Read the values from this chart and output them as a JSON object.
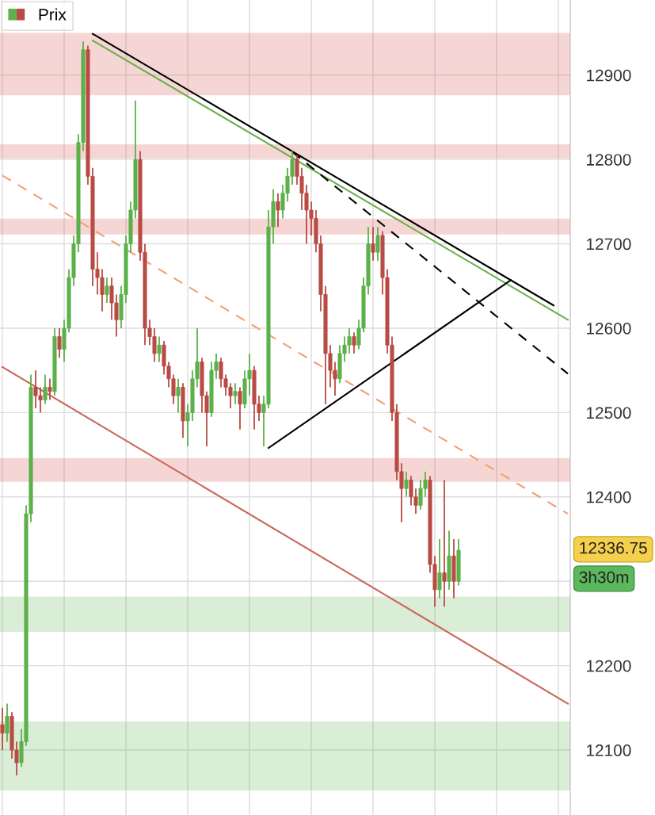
{
  "chart_data": {
    "type": "candlestick",
    "categories": [
      null,
      null,
      null,
      null,
      null,
      null,
      null,
      null,
      null,
      null,
      null,
      null,
      null,
      null,
      null,
      null,
      null,
      null,
      null,
      null,
      null,
      null,
      null,
      null,
      null,
      null,
      null,
      null,
      null,
      null,
      null,
      null,
      null,
      null,
      null,
      null,
      null,
      null,
      null,
      null,
      null,
      null,
      null,
      null,
      null,
      null,
      null,
      null,
      null,
      null,
      null,
      null,
      null,
      null,
      null,
      null,
      null,
      null,
      null,
      null,
      null,
      null,
      null,
      null,
      null,
      null,
      null,
      null,
      null,
      null,
      null,
      null,
      null,
      null,
      null,
      null,
      null,
      null,
      null,
      null,
      null,
      null,
      null,
      null,
      null,
      null,
      null,
      null,
      null,
      null,
      null,
      null,
      null,
      null,
      null,
      null,
      null,
      null,
      null,
      null,
      null,
      null,
      null,
      null,
      null,
      null,
      null,
      null,
      null,
      null,
      null,
      null,
      null,
      null,
      null,
      null,
      null,
      null,
      null,
      null
    ],
    "ylim": [
      12023,
      12989
    ],
    "yticks": [
      12100,
      12200,
      {
        "value": 12300,
        "label": null
      },
      12400,
      12500,
      12600,
      12700,
      12800,
      12900
    ],
    "grid": true,
    "legend": "top left",
    "series": [
      {
        "name": "Prix",
        "ohlc": [
          [
            12130,
            12150,
            12100,
            12120
          ],
          [
            12120,
            12155,
            12110,
            12140
          ],
          [
            12140,
            12145,
            12090,
            12100
          ],
          [
            12100,
            12110,
            12070,
            12085
          ],
          [
            12085,
            12125,
            12080,
            12110
          ],
          [
            12110,
            12390,
            12105,
            12380
          ],
          [
            12380,
            12545,
            12370,
            12530
          ],
          [
            12530,
            12550,
            12505,
            12520
          ],
          [
            12520,
            12530,
            12500,
            12515
          ],
          [
            12515,
            12545,
            12510,
            12530
          ],
          [
            12530,
            12540,
            12515,
            12525
          ],
          [
            12525,
            12600,
            12520,
            12590
          ],
          [
            12590,
            12600,
            12565,
            12575
          ],
          [
            12575,
            12610,
            12560,
            12600
          ],
          [
            12600,
            12670,
            12595,
            12660
          ],
          [
            12660,
            12710,
            12650,
            12700
          ],
          [
            12700,
            12830,
            12690,
            12820
          ],
          [
            12820,
            12940,
            12810,
            12930
          ],
          [
            12930,
            12935,
            12770,
            12780
          ],
          [
            12780,
            12790,
            12650,
            12670
          ],
          [
            12670,
            12690,
            12640,
            12660
          ],
          [
            12660,
            12670,
            12620,
            12640
          ],
          [
            12640,
            12660,
            12630,
            12650
          ],
          [
            12650,
            12660,
            12610,
            12630
          ],
          [
            12630,
            12640,
            12590,
            12610
          ],
          [
            12610,
            12650,
            12600,
            12640
          ],
          [
            12640,
            12710,
            12630,
            12700
          ],
          [
            12700,
            12750,
            12690,
            12740
          ],
          [
            12740,
            12870,
            12730,
            12800
          ],
          [
            12800,
            12810,
            12680,
            12690
          ],
          [
            12690,
            12700,
            12580,
            12600
          ],
          [
            12600,
            12610,
            12580,
            12590
          ],
          [
            12590,
            12600,
            12560,
            12570
          ],
          [
            12570,
            12590,
            12560,
            12580
          ],
          [
            12580,
            12585,
            12545,
            12555
          ],
          [
            12555,
            12560,
            12530,
            12540
          ],
          [
            12540,
            12545,
            12510,
            12520
          ],
          [
            12520,
            12540,
            12500,
            12530
          ],
          [
            12530,
            12535,
            12470,
            12490
          ],
          [
            12490,
            12510,
            12460,
            12500
          ],
          [
            12500,
            12550,
            12490,
            12540
          ],
          [
            12540,
            12600,
            12530,
            12560
          ],
          [
            12560,
            12565,
            12500,
            12520
          ],
          [
            12520,
            12525,
            12460,
            12500
          ],
          [
            12500,
            12560,
            12495,
            12550
          ],
          [
            12550,
            12570,
            12540,
            12560
          ],
          [
            12560,
            12565,
            12530,
            12540
          ],
          [
            12540,
            12545,
            12520,
            12530
          ],
          [
            12530,
            12535,
            12505,
            12520
          ],
          [
            12520,
            12535,
            12510,
            12525
          ],
          [
            12525,
            12530,
            12480,
            12510
          ],
          [
            12510,
            12550,
            12505,
            12540
          ],
          [
            12540,
            12570,
            12520,
            12550
          ],
          [
            12550,
            12555,
            12480,
            12510
          ],
          [
            12510,
            12520,
            12490,
            12500
          ],
          [
            12500,
            12520,
            12460,
            12510
          ],
          [
            12510,
            12740,
            12505,
            12720
          ],
          [
            12720,
            12765,
            12700,
            12750
          ],
          [
            12750,
            12760,
            12720,
            12740
          ],
          [
            12740,
            12770,
            12730,
            12760
          ],
          [
            12760,
            12790,
            12750,
            12780
          ],
          [
            12780,
            12810,
            12770,
            12800
          ],
          [
            12800,
            12805,
            12770,
            12780
          ],
          [
            12780,
            12790,
            12740,
            12760
          ],
          [
            12760,
            12770,
            12700,
            12740
          ],
          [
            12740,
            12750,
            12710,
            12730
          ],
          [
            12730,
            12740,
            12690,
            12700
          ],
          [
            12700,
            12710,
            12620,
            12640
          ],
          [
            12640,
            12650,
            12510,
            12570
          ],
          [
            12570,
            12580,
            12530,
            12550
          ],
          [
            12550,
            12560,
            12520,
            12540
          ],
          [
            12540,
            12580,
            12535,
            12570
          ],
          [
            12570,
            12590,
            12560,
            12580
          ],
          [
            12580,
            12600,
            12570,
            12590
          ],
          [
            12590,
            12595,
            12570,
            12580
          ],
          [
            12580,
            12610,
            12575,
            12600
          ],
          [
            12600,
            12660,
            12595,
            12650
          ],
          [
            12650,
            12720,
            12640,
            12700
          ],
          [
            12700,
            12720,
            12680,
            12690
          ],
          [
            12690,
            12720,
            12680,
            12710
          ],
          [
            12710,
            12715,
            12640,
            12660
          ],
          [
            12660,
            12670,
            12570,
            12580
          ],
          [
            12580,
            12590,
            12490,
            12500
          ],
          [
            12500,
            12510,
            12420,
            12430
          ],
          [
            12430,
            12440,
            12370,
            12410
          ],
          [
            12410,
            12430,
            12400,
            12420
          ],
          [
            12420,
            12425,
            12390,
            12400
          ],
          [
            12400,
            12410,
            12380,
            12390
          ],
          [
            12390,
            12420,
            12385,
            12410
          ],
          [
            12410,
            12430,
            12400,
            12420
          ],
          [
            12420,
            12425,
            12310,
            12320
          ],
          [
            12320,
            12330,
            12270,
            12290
          ],
          [
            12290,
            12350,
            12280,
            12310
          ],
          [
            12310,
            12420,
            12270,
            12300
          ],
          [
            12300,
            12360,
            12290,
            12330
          ],
          [
            12330,
            12350,
            12280,
            12300
          ],
          [
            12300,
            12350,
            12295,
            12336.75
          ],
          null,
          null,
          null,
          null,
          null,
          null,
          null,
          null,
          null,
          null,
          null,
          null,
          null,
          null,
          null,
          null,
          null,
          null,
          null,
          null,
          null,
          null,
          null
        ]
      },
      {
        "type": "line",
        "color": "#6ab04c",
        "line_style": "solid",
        "values": [
          null,
          null,
          null,
          null,
          null,
          null,
          null,
          null,
          null,
          null,
          null,
          null,
          null,
          null,
          null,
          null,
          null,
          null,
          null,
          12941,
          null,
          null,
          null,
          null,
          null,
          null,
          null,
          null,
          null,
          null,
          null,
          null,
          null,
          null,
          null,
          null,
          null,
          null,
          null,
          null,
          null,
          null,
          null,
          null,
          null,
          null,
          null,
          null,
          null,
          null,
          null,
          null,
          null,
          null,
          null,
          null,
          null,
          null,
          null,
          null,
          null,
          null,
          null,
          null,
          null,
          null,
          null,
          null,
          null,
          null,
          null,
          null,
          null,
          null,
          null,
          null,
          null,
          null,
          null,
          null,
          null,
          null,
          null,
          null,
          null,
          null,
          null,
          null,
          null,
          null,
          null,
          null,
          null,
          null,
          null,
          null,
          null,
          null,
          null,
          null,
          null,
          null,
          null,
          null,
          null,
          null,
          null,
          null,
          null,
          null,
          null,
          null,
          null,
          null,
          null,
          null,
          null,
          null,
          null,
          12610
        ]
      },
      {
        "type": "line",
        "color": "#c9655b",
        "line_style": "solid",
        "values": [
          12554,
          null,
          null,
          null,
          null,
          null,
          null,
          null,
          null,
          null,
          null,
          null,
          null,
          null,
          null,
          null,
          null,
          null,
          null,
          null,
          null,
          null,
          null,
          null,
          null,
          null,
          null,
          null,
          null,
          null,
          null,
          null,
          null,
          null,
          null,
          null,
          null,
          null,
          null,
          null,
          null,
          null,
          null,
          null,
          null,
          null,
          null,
          null,
          null,
          null,
          null,
          null,
          null,
          null,
          null,
          null,
          null,
          null,
          null,
          null,
          null,
          null,
          null,
          null,
          null,
          null,
          null,
          null,
          null,
          null,
          null,
          null,
          null,
          null,
          null,
          null,
          null,
          null,
          null,
          null,
          null,
          null,
          null,
          null,
          null,
          null,
          null,
          null,
          null,
          null,
          null,
          null,
          null,
          null,
          null,
          null,
          null,
          null,
          null,
          null,
          null,
          null,
          null,
          null,
          null,
          null,
          null,
          null,
          null,
          null,
          null,
          null,
          null,
          null,
          null,
          null,
          null,
          null,
          null,
          12155
        ]
      },
      {
        "type": "line",
        "color": "#f0a070",
        "line_style": "dashed",
        "values": [
          12781,
          null,
          null,
          null,
          null,
          null,
          null,
          null,
          null,
          null,
          null,
          null,
          null,
          null,
          null,
          null,
          null,
          null,
          null,
          null,
          null,
          null,
          null,
          null,
          null,
          null,
          null,
          null,
          null,
          null,
          null,
          null,
          null,
          null,
          null,
          null,
          null,
          null,
          null,
          null,
          null,
          null,
          null,
          null,
          null,
          null,
          null,
          null,
          null,
          null,
          null,
          null,
          null,
          null,
          null,
          null,
          null,
          null,
          null,
          null,
          null,
          null,
          null,
          null,
          null,
          null,
          null,
          null,
          null,
          null,
          null,
          null,
          null,
          null,
          null,
          null,
          null,
          null,
          null,
          null,
          null,
          null,
          null,
          null,
          null,
          null,
          null,
          null,
          null,
          null,
          null,
          null,
          null,
          null,
          null,
          null,
          null,
          null,
          null,
          null,
          null,
          null,
          null,
          null,
          null,
          null,
          null,
          null,
          null,
          null,
          null,
          null,
          null,
          null,
          null,
          null,
          null,
          null,
          null,
          12380
        ]
      },
      {
        "type": "line",
        "color": "#000000",
        "line_style": "solid",
        "values": [
          null,
          null,
          null,
          null,
          null,
          null,
          null,
          null,
          null,
          null,
          null,
          null,
          null,
          null,
          null,
          null,
          null,
          null,
          null,
          12949,
          null,
          null,
          null,
          null,
          null,
          null,
          null,
          null,
          null,
          null,
          null,
          null,
          null,
          null,
          null,
          null,
          null,
          null,
          null,
          null,
          null,
          null,
          null,
          null,
          null,
          null,
          null,
          null,
          null,
          null,
          null,
          null,
          null,
          null,
          null,
          null,
          null,
          null,
          null,
          null,
          null,
          null,
          null,
          null,
          null,
          null,
          null,
          null,
          null,
          null,
          null,
          null,
          null,
          null,
          null,
          null,
          null,
          null,
          null,
          null,
          null,
          null,
          null,
          null,
          null,
          null,
          null,
          null,
          null,
          null,
          null,
          null,
          null,
          null,
          null,
          null,
          null,
          null,
          null,
          null,
          null,
          null,
          null,
          null,
          null,
          null,
          null,
          null,
          null,
          null,
          null,
          null,
          null,
          null,
          null,
          null,
          12627,
          null,
          null,
          null
        ]
      },
      {
        "type": "line",
        "color": "#000000",
        "line_style": "dashed",
        "values": [
          null,
          null,
          null,
          null,
          null,
          null,
          null,
          null,
          null,
          null,
          null,
          null,
          null,
          null,
          null,
          null,
          null,
          null,
          null,
          null,
          null,
          null,
          null,
          null,
          null,
          null,
          null,
          null,
          null,
          null,
          null,
          null,
          null,
          null,
          null,
          null,
          null,
          null,
          null,
          null,
          null,
          null,
          null,
          null,
          null,
          null,
          null,
          null,
          null,
          null,
          null,
          null,
          null,
          null,
          null,
          null,
          null,
          null,
          null,
          null,
          null,
          12809,
          null,
          null,
          null,
          null,
          null,
          null,
          null,
          null,
          null,
          null,
          null,
          null,
          null,
          null,
          null,
          null,
          null,
          null,
          null,
          null,
          null,
          null,
          null,
          null,
          null,
          null,
          null,
          null,
          null,
          null,
          null,
          null,
          null,
          null,
          null,
          null,
          null,
          null,
          null,
          null,
          null,
          null,
          null,
          null,
          null,
          null,
          null,
          null,
          null,
          null,
          null,
          null,
          null,
          null,
          null,
          null,
          null,
          12546
        ]
      },
      {
        "type": "line",
        "color": "#000000",
        "line_style": "solid",
        "values": [
          null,
          null,
          null,
          null,
          null,
          null,
          null,
          null,
          null,
          null,
          null,
          null,
          null,
          null,
          null,
          null,
          null,
          null,
          null,
          null,
          null,
          null,
          null,
          null,
          null,
          null,
          null,
          null,
          null,
          null,
          null,
          null,
          null,
          null,
          null,
          null,
          null,
          null,
          null,
          null,
          null,
          null,
          null,
          null,
          null,
          null,
          null,
          null,
          null,
          null,
          null,
          null,
          null,
          null,
          null,
          null,
          12458,
          null,
          null,
          null,
          null,
          null,
          null,
          null,
          null,
          null,
          null,
          null,
          null,
          null,
          null,
          null,
          null,
          null,
          null,
          null,
          null,
          null,
          null,
          null,
          null,
          null,
          null,
          null,
          null,
          null,
          null,
          null,
          null,
          null,
          null,
          null,
          null,
          null,
          null,
          null,
          null,
          null,
          null,
          null,
          null,
          null,
          null,
          null,
          null,
          null,
          null,
          12657,
          null,
          null,
          null,
          null,
          null,
          null,
          null,
          null,
          null,
          null,
          null,
          null
        ]
      }
    ],
    "bands": [
      {
        "axis": "y",
        "from": 12877,
        "to": 12949,
        "color": "#d9473f"
      },
      {
        "axis": "y",
        "from": 12802,
        "to": 12817,
        "color": "#d9473f"
      },
      {
        "axis": "y",
        "from": 12712,
        "to": 12729,
        "color": "#d9473f"
      },
      {
        "axis": "y",
        "from": 12419,
        "to": 12445,
        "color": "#d9473f"
      },
      {
        "axis": "y",
        "from": 12241,
        "to": 12281,
        "color": "#5cb14a"
      },
      {
        "axis": "y",
        "from": 12053,
        "to": 12133,
        "color": "#5cb14a"
      }
    ],
    "annotations": [
      "12336.75",
      "3h30m"
    ]
  }
}
